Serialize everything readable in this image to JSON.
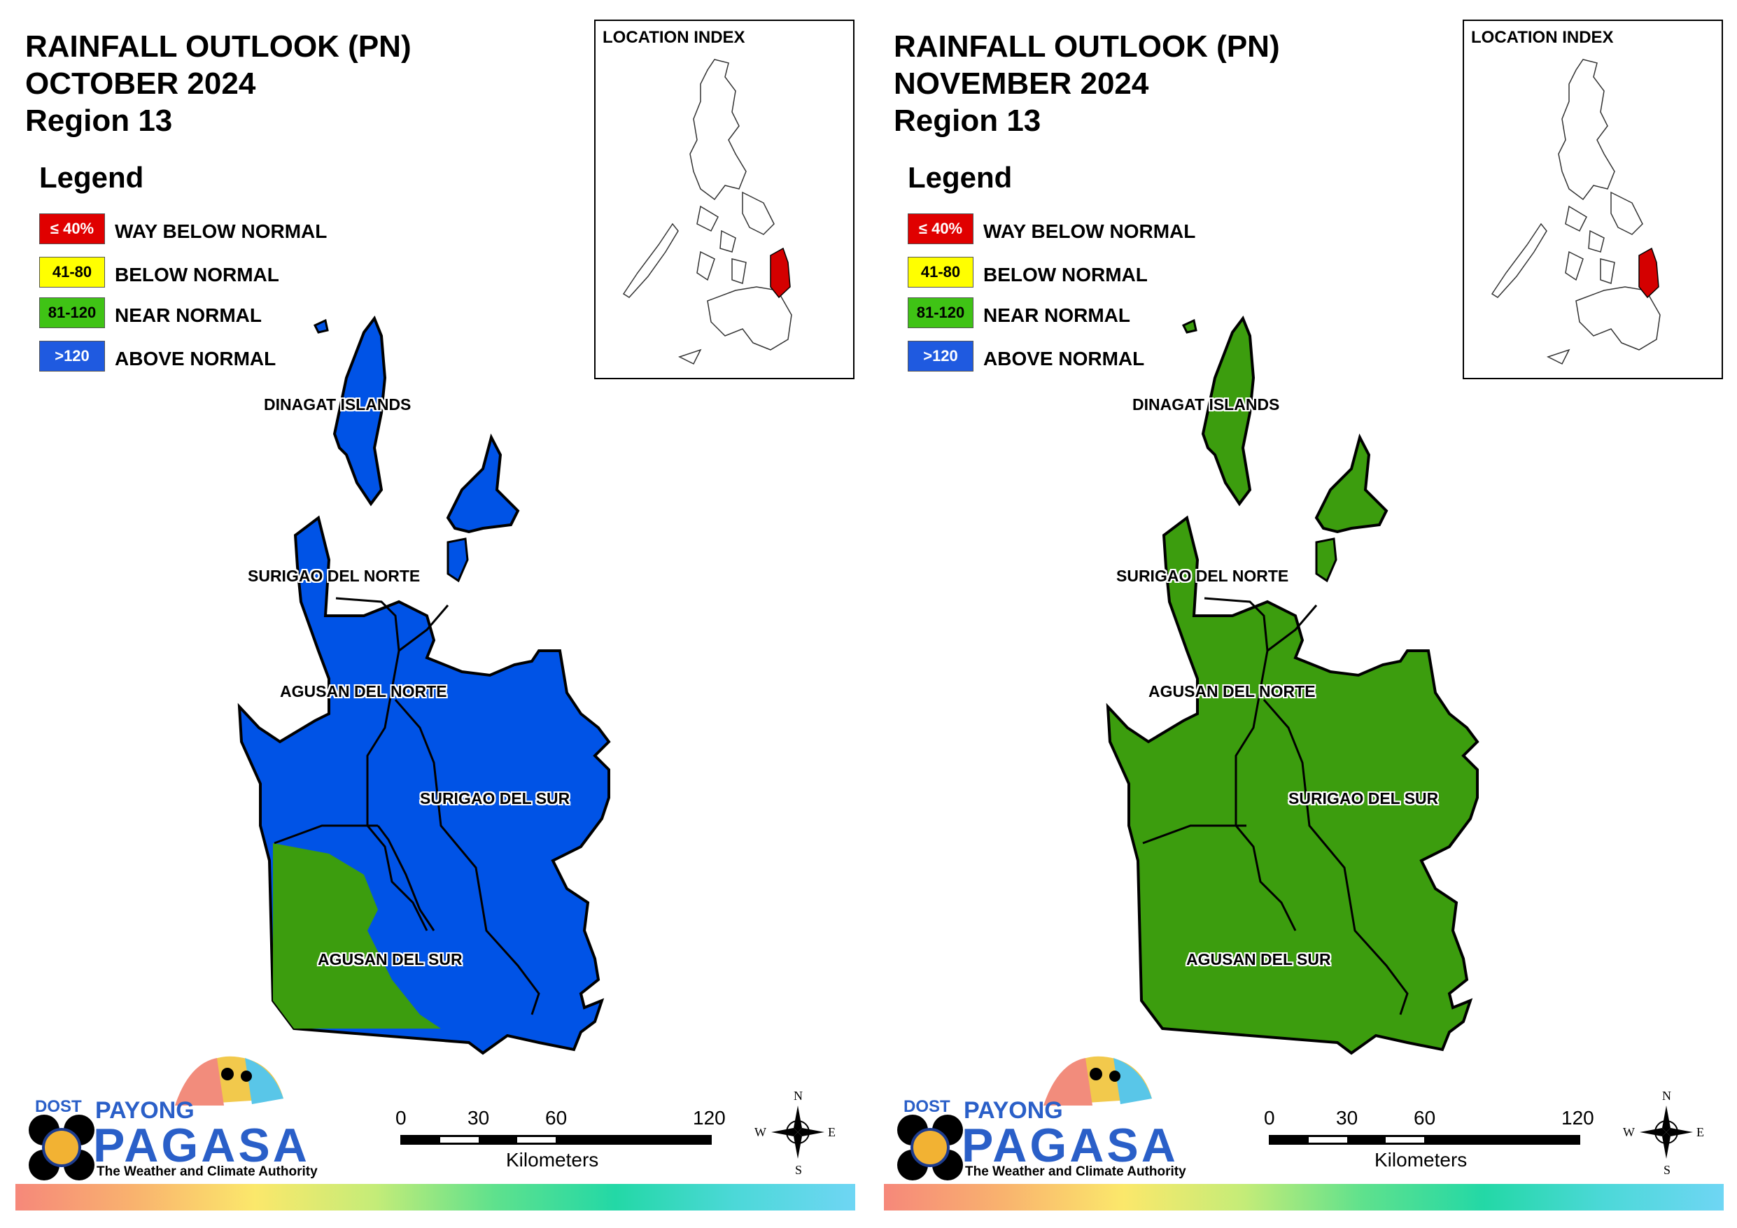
{
  "legend": {
    "title": "Legend",
    "items": [
      {
        "range": "≤ 40%",
        "label": "WAY BELOW NORMAL",
        "color": "#e00000",
        "text_color": "#ffffff"
      },
      {
        "range": "41-80",
        "label": "BELOW NORMAL",
        "color": "#ffff00",
        "text_color": "#000000"
      },
      {
        "range": "81-120",
        "label": "NEAR NORMAL",
        "color": "#3fc315",
        "text_color": "#000000"
      },
      {
        "range": ">120",
        "label": "ABOVE NORMAL",
        "color": "#1f5ae0",
        "text_color": "#ffffff"
      }
    ]
  },
  "inset": {
    "title": "LOCATION INDEX",
    "highlight_color": "#d40000"
  },
  "provinces": [
    "DINAGAT ISLANDS",
    "SURIGAO DEL NORTE",
    "AGUSAN DEL NORTE",
    "SURIGAO DEL SUR",
    "AGUSAN DEL SUR"
  ],
  "scale": {
    "ticks": [
      "0",
      "30",
      "60",
      "120"
    ],
    "unit": "Kilometers"
  },
  "compass": {
    "n": "N",
    "s": "S",
    "e": "E",
    "w": "W"
  },
  "logo": {
    "dost": "DOST",
    "payong": "PAYONG",
    "pagasa": "PAGASA",
    "tagline": "The Weather and Climate Authority"
  },
  "maps": [
    {
      "title_line1": "RAINFALL OUTLOOK (PN)",
      "title_line2": "OCTOBER 2024",
      "title_line3": "Region 13",
      "province_category": {
        "DINAGAT ISLANDS": "ABOVE NORMAL",
        "SURIGAO DEL NORTE": "ABOVE NORMAL",
        "AGUSAN DEL NORTE": "ABOVE NORMAL",
        "SURIGAO DEL SUR": "ABOVE NORMAL",
        "AGUSAN DEL SUR": "ABOVE NORMAL (east) / NEAR NORMAL (west)"
      },
      "main_color": "#0053e6",
      "secondary_color": "#3c9d0e"
    },
    {
      "title_line1": "RAINFALL OUTLOOK (PN)",
      "title_line2": "NOVEMBER 2024",
      "title_line3": "Region 13",
      "province_category": {
        "DINAGAT ISLANDS": "NEAR NORMAL",
        "SURIGAO DEL NORTE": "NEAR NORMAL",
        "AGUSAN DEL NORTE": "NEAR NORMAL",
        "SURIGAO DEL SUR": "NEAR NORMAL",
        "AGUSAN DEL SUR": "NEAR NORMAL"
      },
      "main_color": "#3c9d0e",
      "secondary_color": "#3c9d0e"
    }
  ]
}
